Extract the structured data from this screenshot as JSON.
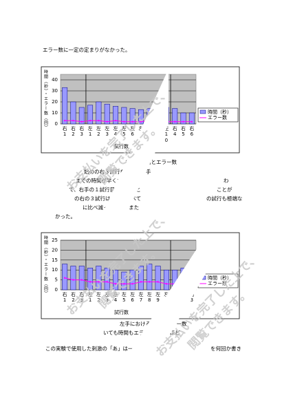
{
  "paragraphs": [
    "エラー数に一定の定まりがなかった。",
    "始めの右３試行を見ると右手",
    "までの時間が早くなって",
    "て、右手の１試行目と比べると",
    "の右の３試行は最初に比べて",
    "に比べ減っている。また",
    "かった。",
    "わ",
    "ことが",
    "の試行も極端な",
    "いても時間もエラー数もそれほど",
    "この実験で使用した刺激の「あ」は一筆",
    "を何回か書き"
  ],
  "captions": [
    "おける時間とエラー数",
    "左手における時間とエラー数"
  ],
  "watermark": [
    "お支払いを完了した上で、",
    "閲覧できます。"
  ],
  "charts": [
    {
      "type": "bar",
      "ylabel": "時間（秒）・エラー数（回）",
      "xlabel": "試行数",
      "categories": [
        "右1",
        "右2",
        "右3",
        "左1",
        "左2",
        "左3",
        "左4",
        "左5",
        "左6",
        "左7",
        "左8",
        "左9",
        "左10",
        "右4",
        "右5",
        "右6"
      ],
      "series": [
        {
          "name": "時間（秒）",
          "color": "#9999ff",
          "values": [
            33,
            20,
            15,
            17,
            20,
            18,
            16,
            15,
            14,
            13,
            14,
            12,
            15,
            14,
            10,
            10
          ]
        },
        {
          "name": "エラー数",
          "color": "#ff00ff",
          "values": [
            3,
            3,
            2,
            3,
            3,
            2,
            3,
            2,
            2,
            2,
            3,
            2,
            2,
            2,
            2,
            2
          ]
        }
      ],
      "ylim": [
        0,
        45
      ],
      "yticks": [
        0,
        10,
        20,
        30,
        40
      ]
    },
    {
      "type": "bar",
      "ylabel": "時間（秒）・エラー数（回）",
      "xlabel": "試行数",
      "categories": [
        "右1",
        "右2",
        "右3",
        "左1",
        "左2",
        "左3",
        "左4",
        "左5",
        "左6",
        "左7",
        "左8",
        "左9",
        "左10",
        "右1",
        "右2",
        "右3"
      ],
      "series": [
        {
          "name": "時間（秒）",
          "color": "#9999ff",
          "values": [
            13,
            12,
            12,
            11,
            12,
            11,
            10,
            9,
            10,
            12,
            13,
            12,
            10,
            10,
            11,
            11
          ]
        },
        {
          "name": "エラー数",
          "color": "#ff00ff",
          "values": [
            6,
            5,
            5,
            4,
            4,
            4,
            3,
            3,
            3,
            4,
            4,
            4,
            3,
            3,
            3,
            3
          ]
        }
      ],
      "ylim": [
        0,
        25
      ],
      "yticks": [
        0,
        5,
        10,
        15,
        20,
        25
      ]
    }
  ]
}
